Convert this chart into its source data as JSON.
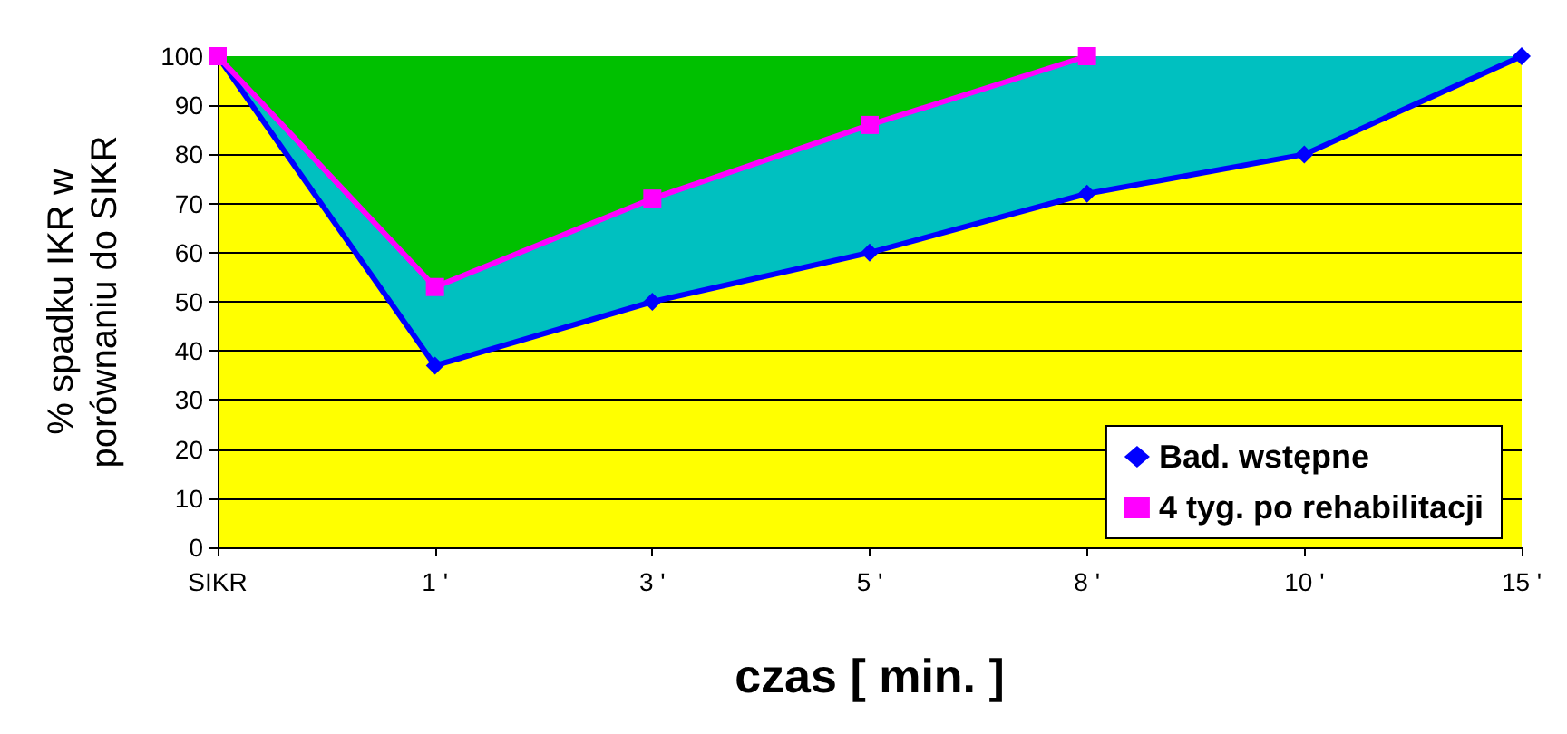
{
  "chart_data": {
    "type": "line",
    "xlabel": "czas [ min. ]",
    "ylabel": "% spadku IKR w\nporównaniu do SIKR",
    "categories": [
      "SIKR",
      "1 '",
      "3 '",
      "5 '",
      "8 '",
      "10 '",
      "15 '"
    ],
    "series": [
      {
        "name": "Bad. wstępne",
        "color": "#0000ff",
        "marker": "diamond",
        "values": [
          100,
          37,
          50,
          60,
          72,
          80,
          100
        ],
        "lower": [
          100,
          37,
          50,
          60,
          72,
          80,
          100
        ],
        "upper": [
          100,
          53,
          71,
          86,
          100,
          100,
          100
        ]
      },
      {
        "name": "4 tyg. po rehabilitacji",
        "color": "#ff00ff",
        "marker": "square",
        "values": [
          100,
          53,
          71,
          86,
          100,
          null,
          null
        ],
        "lower": [
          100,
          53,
          71,
          86,
          100,
          null,
          null
        ],
        "upper": [
          100,
          100,
          100,
          100,
          100,
          null,
          null
        ]
      }
    ],
    "ylim": [
      0,
      100
    ],
    "yticks": [
      0,
      10,
      20,
      30,
      40,
      50,
      60,
      70,
      80,
      90,
      100
    ],
    "grid": "y",
    "legend": "bottom right"
  }
}
